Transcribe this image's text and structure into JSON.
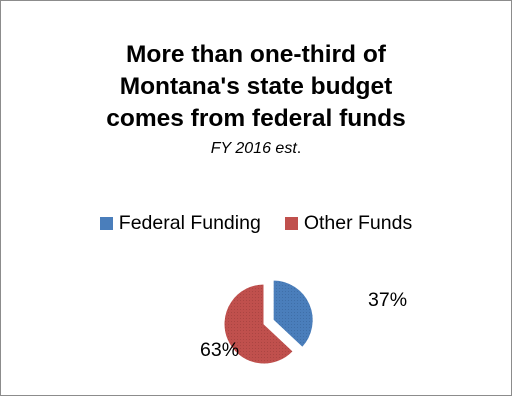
{
  "chart_data": {
    "type": "pie",
    "title_lines": [
      "More than one-third of",
      "Montana's state budget",
      "comes from federal funds"
    ],
    "subtitle": "FY 2016 est",
    "subtitle_suffix": ".",
    "legend_position": "top",
    "slices": [
      {
        "name": "Federal Funding",
        "value": 37,
        "label": "37%",
        "color": "#4a7ebb",
        "exploded": true
      },
      {
        "name": "Other Funds",
        "value": 63,
        "label": "63%",
        "color": "#c0504d",
        "exploded": false
      }
    ]
  }
}
